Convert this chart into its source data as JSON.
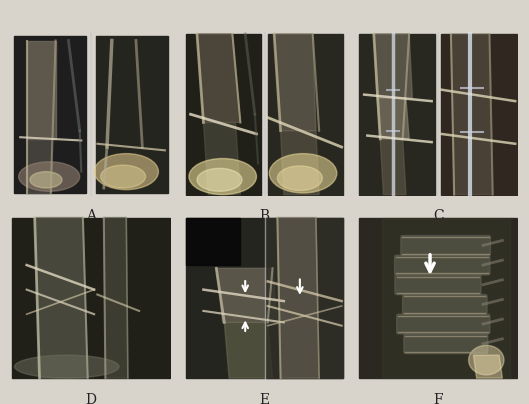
{
  "background_color": "#d8d4cc",
  "label_fontsize": 10,
  "labels": [
    "A",
    "B",
    "C",
    "D",
    "E",
    "F"
  ],
  "grid_rows": 2,
  "grid_cols": 3,
  "figsize": [
    5.29,
    4.04
  ],
  "dpi": 100,
  "panel_bg": "#1a1a1a",
  "bone_color_light": "#c8c0a8",
  "bone_color_mid": "#908878",
  "bone_color_dark": "#404040",
  "separator_color": "#cccccc",
  "arrow_color": "#ffffff",
  "label_color": "#222222"
}
